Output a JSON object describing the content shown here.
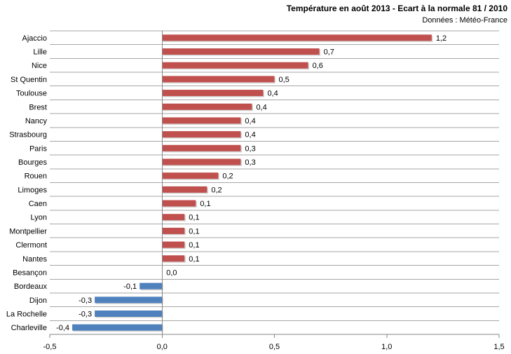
{
  "chart_data": {
    "type": "bar",
    "orientation": "horizontal",
    "title": "Température en août 2013 - Ecart à la normale 81 / 2010",
    "subtitle": "Données : Météo-France",
    "categories": [
      "Ajaccio",
      "Lille",
      "Nice",
      "St Quentin",
      "Toulouse",
      "Brest",
      "Nancy",
      "Strasbourg",
      "Paris",
      "Bourges",
      "Rouen",
      "Limoges",
      "Caen",
      "Lyon",
      "Montpellier",
      "Clermont",
      "Nantes",
      "Besançon",
      "Bordeaux",
      "Dijon",
      "La Rochelle",
      "Charleville"
    ],
    "values": [
      1.2,
      0.7,
      0.65,
      0.5,
      0.45,
      0.4,
      0.35,
      0.35,
      0.35,
      0.35,
      0.25,
      0.2,
      0.15,
      0.1,
      0.1,
      0.1,
      0.1,
      0.0,
      -0.1,
      -0.3,
      -0.3,
      -0.4
    ],
    "data_labels": [
      "1,2",
      "0,7",
      "0,6",
      "0,5",
      "0,4",
      "0,4",
      "0,4",
      "0,4",
      "0,3",
      "0,3",
      "0,2",
      "0,2",
      "0,1",
      "0,1",
      "0,1",
      "0,1",
      "0,1",
      "0,0",
      "-0,1",
      "-0,3",
      "-0,3",
      "-0,4"
    ],
    "xlim": [
      -0.5,
      1.5
    ],
    "xticks": [
      -0.5,
      0.0,
      0.5,
      1.0,
      1.5
    ],
    "xtick_labels": [
      "-0,5",
      "0,0",
      "0,5",
      "1,0",
      "1,5"
    ],
    "grid": "horizontal",
    "colors": {
      "positive": "#C0504D",
      "negative": "#4F81BD",
      "grid": "#A6A6A6",
      "axis": "#868686"
    }
  }
}
